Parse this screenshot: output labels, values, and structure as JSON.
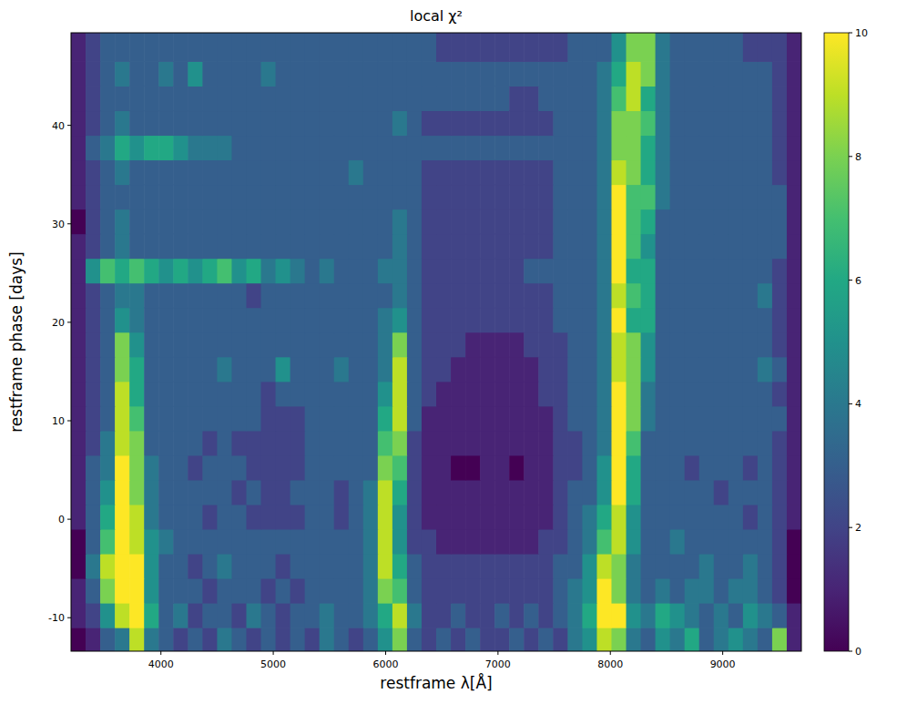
{
  "chart_data": {
    "type": "heatmap",
    "title": "local χ²",
    "x_label": "restframe λ[Å]",
    "y_label": "restframe phase [days]",
    "x_edges": [
      3200,
      3330,
      3460,
      3590,
      3720,
      3850,
      3980,
      4110,
      4240,
      4370,
      4500,
      4630,
      4760,
      4890,
      5020,
      5150,
      5280,
      5410,
      5540,
      5670,
      5800,
      5930,
      6060,
      6190,
      6320,
      6450,
      6580,
      6710,
      6840,
      6970,
      7100,
      7230,
      7360,
      7490,
      7620,
      7750,
      7880,
      8010,
      8140,
      8270,
      8400,
      8530,
      8660,
      8790,
      8920,
      9050,
      9180,
      9310,
      9440,
      9570,
      9700
    ],
    "y_edges": [
      -13.4,
      -11,
      -8.5,
      -6,
      -3.5,
      -1,
      1.5,
      4,
      6.5,
      9,
      11.5,
      14,
      16.5,
      19,
      21.5,
      24,
      26.5,
      29,
      31.5,
      34,
      36.5,
      39,
      41.5,
      44,
      46.5,
      49.4
    ],
    "cells": [
      [
        0,
        1,
        3,
        4,
        9,
        4,
        3,
        2,
        3,
        2,
        4,
        3,
        2,
        3,
        2,
        3,
        2,
        4,
        3,
        2,
        3,
        5,
        8,
        3,
        2,
        3,
        2,
        3,
        2,
        2,
        3,
        2,
        3,
        2,
        4,
        5,
        9,
        8,
        4,
        3,
        5,
        4,
        6,
        3,
        4,
        5,
        4,
        3,
        8,
        1
      ],
      [
        1,
        2,
        5,
        9,
        10,
        6,
        3,
        4,
        2,
        3,
        3,
        2,
        4,
        3,
        2,
        3,
        3,
        4,
        3,
        3,
        4,
        6,
        9,
        4,
        2,
        2,
        3,
        2,
        2,
        3,
        2,
        3,
        2,
        3,
        4,
        6,
        10,
        10,
        5,
        4,
        6,
        5,
        4,
        3,
        4,
        3,
        5,
        4,
        3,
        1
      ],
      [
        1,
        3,
        8,
        10,
        10,
        5,
        3,
        3,
        3,
        2,
        3,
        3,
        3,
        2,
        3,
        2,
        3,
        3,
        3,
        3,
        4,
        8,
        7,
        3,
        2,
        2,
        2,
        2,
        2,
        2,
        2,
        2,
        2,
        3,
        4,
        5,
        10,
        8,
        4,
        3,
        4,
        3,
        4,
        4,
        3,
        4,
        4,
        3,
        2,
        0
      ],
      [
        0,
        4,
        9,
        10,
        10,
        5,
        3,
        3,
        2,
        3,
        4,
        3,
        3,
        3,
        2,
        3,
        3,
        3,
        3,
        3,
        4,
        9,
        6,
        3,
        2,
        2,
        2,
        2,
        2,
        2,
        2,
        2,
        2,
        3,
        3,
        5,
        9,
        8,
        4,
        3,
        3,
        3,
        3,
        4,
        3,
        3,
        4,
        3,
        2,
        0
      ],
      [
        0,
        3,
        7,
        10,
        9,
        5,
        4,
        3,
        3,
        3,
        3,
        3,
        3,
        3,
        3,
        3,
        3,
        3,
        3,
        3,
        4,
        9,
        5,
        2,
        2,
        1,
        1,
        1,
        1,
        1,
        1,
        1,
        2,
        2,
        3,
        4,
        7,
        9,
        5,
        3,
        3,
        4,
        3,
        3,
        3,
        3,
        3,
        3,
        2,
        0
      ],
      [
        1,
        3,
        6,
        10,
        9,
        4,
        3,
        3,
        3,
        2,
        3,
        3,
        2,
        2,
        2,
        2,
        3,
        3,
        2,
        3,
        4,
        9,
        5,
        2,
        1,
        1,
        1,
        1,
        1,
        1,
        1,
        1,
        1,
        2,
        3,
        4,
        6,
        9,
        5,
        3,
        3,
        3,
        3,
        3,
        3,
        3,
        2,
        3,
        2,
        1
      ],
      [
        1,
        3,
        5,
        10,
        8,
        4,
        3,
        3,
        3,
        3,
        3,
        2,
        3,
        2,
        2,
        3,
        3,
        3,
        2,
        3,
        4,
        9,
        6,
        2,
        1,
        1,
        1,
        1,
        1,
        1,
        1,
        1,
        1,
        2,
        3,
        3,
        5,
        10,
        6,
        3,
        3,
        3,
        3,
        3,
        2,
        3,
        3,
        3,
        2,
        1
      ],
      [
        1,
        3,
        4,
        10,
        8,
        4,
        3,
        3,
        2,
        3,
        3,
        3,
        2,
        2,
        2,
        2,
        3,
        3,
        3,
        3,
        3,
        8,
        7,
        2,
        1,
        1,
        0,
        0,
        1,
        1,
        0,
        1,
        1,
        2,
        2,
        3,
        5,
        10,
        6,
        3,
        3,
        3,
        2,
        3,
        3,
        3,
        2,
        3,
        2,
        1
      ],
      [
        1,
        2,
        4,
        9,
        8,
        3,
        3,
        3,
        3,
        2,
        3,
        2,
        2,
        2,
        2,
        2,
        3,
        3,
        3,
        3,
        3,
        7,
        8,
        2,
        1,
        1,
        1,
        1,
        1,
        1,
        1,
        1,
        1,
        2,
        2,
        3,
        4,
        10,
        7,
        3,
        3,
        3,
        3,
        3,
        3,
        3,
        3,
        3,
        2,
        1
      ],
      [
        1,
        2,
        3,
        9,
        7,
        3,
        3,
        3,
        3,
        3,
        3,
        3,
        3,
        2,
        2,
        2,
        3,
        3,
        3,
        3,
        3,
        6,
        9,
        3,
        1,
        1,
        1,
        1,
        1,
        1,
        1,
        1,
        1,
        2,
        3,
        3,
        4,
        10,
        8,
        4,
        3,
        3,
        3,
        3,
        3,
        3,
        3,
        3,
        3,
        1
      ],
      [
        1,
        2,
        3,
        9,
        6,
        3,
        3,
        3,
        3,
        3,
        3,
        3,
        3,
        2,
        3,
        3,
        3,
        3,
        3,
        3,
        3,
        5,
        9,
        3,
        2,
        1,
        1,
        1,
        1,
        1,
        1,
        1,
        2,
        2,
        3,
        3,
        4,
        10,
        8,
        4,
        3,
        3,
        3,
        3,
        3,
        3,
        3,
        3,
        2,
        1
      ],
      [
        1,
        2,
        3,
        8,
        6,
        3,
        3,
        3,
        3,
        3,
        4,
        3,
        3,
        3,
        5,
        3,
        3,
        3,
        4,
        3,
        3,
        4,
        9,
        3,
        2,
        2,
        1,
        1,
        1,
        1,
        1,
        1,
        2,
        2,
        3,
        3,
        4,
        9,
        8,
        5,
        3,
        3,
        3,
        3,
        3,
        3,
        3,
        4,
        3,
        1
      ],
      [
        1,
        2,
        3,
        8,
        5,
        3,
        3,
        3,
        3,
        3,
        3,
        3,
        3,
        3,
        3,
        3,
        3,
        3,
        3,
        3,
        3,
        4,
        8,
        3,
        2,
        2,
        2,
        1,
        1,
        1,
        1,
        2,
        2,
        2,
        3,
        3,
        4,
        9,
        8,
        5,
        3,
        3,
        3,
        3,
        3,
        3,
        3,
        3,
        2,
        1
      ],
      [
        1,
        2,
        3,
        5,
        4,
        3,
        3,
        3,
        3,
        3,
        3,
        3,
        3,
        3,
        3,
        3,
        3,
        3,
        3,
        3,
        3,
        4,
        5,
        3,
        2,
        2,
        2,
        2,
        2,
        2,
        2,
        2,
        2,
        3,
        3,
        3,
        4,
        10,
        6,
        6,
        3,
        3,
        3,
        3,
        3,
        3,
        3,
        3,
        2,
        1
      ],
      [
        1,
        2,
        3,
        4,
        4,
        3,
        3,
        3,
        3,
        3,
        3,
        3,
        2,
        3,
        3,
        3,
        3,
        3,
        3,
        3,
        3,
        3,
        4,
        3,
        2,
        2,
        2,
        2,
        2,
        2,
        2,
        2,
        2,
        3,
        3,
        3,
        4,
        9,
        7,
        6,
        3,
        3,
        3,
        3,
        3,
        3,
        3,
        4,
        2,
        1
      ],
      [
        1,
        5,
        7,
        6,
        7,
        6,
        5,
        6,
        5,
        6,
        7,
        5,
        6,
        4,
        5,
        4,
        3,
        4,
        3,
        3,
        3,
        4,
        4,
        3,
        2,
        2,
        2,
        2,
        2,
        2,
        2,
        3,
        3,
        3,
        3,
        3,
        4,
        10,
        6,
        6,
        3,
        3,
        3,
        3,
        3,
        3,
        3,
        3,
        2,
        1
      ],
      [
        1,
        2,
        3,
        4,
        3,
        3,
        3,
        3,
        3,
        3,
        3,
        3,
        3,
        3,
        3,
        3,
        3,
        3,
        3,
        3,
        3,
        3,
        4,
        3,
        2,
        2,
        2,
        2,
        2,
        2,
        2,
        2,
        2,
        3,
        3,
        3,
        4,
        10,
        7,
        5,
        3,
        3,
        3,
        3,
        3,
        3,
        3,
        3,
        3,
        1
      ],
      [
        0,
        2,
        3,
        4,
        3,
        3,
        3,
        3,
        3,
        3,
        3,
        3,
        3,
        3,
        3,
        3,
        3,
        3,
        3,
        3,
        3,
        3,
        4,
        3,
        2,
        2,
        2,
        2,
        2,
        2,
        2,
        2,
        2,
        3,
        3,
        3,
        4,
        10,
        7,
        6,
        3,
        3,
        3,
        3,
        3,
        3,
        3,
        3,
        3,
        1
      ],
      [
        1,
        2,
        3,
        3,
        3,
        3,
        3,
        3,
        3,
        3,
        3,
        3,
        3,
        3,
        3,
        3,
        3,
        3,
        3,
        3,
        3,
        3,
        3,
        3,
        2,
        2,
        2,
        2,
        2,
        2,
        2,
        2,
        2,
        3,
        3,
        3,
        4,
        10,
        7,
        7,
        4,
        3,
        3,
        3,
        3,
        3,
        3,
        3,
        3,
        1
      ],
      [
        1,
        2,
        3,
        4,
        3,
        3,
        3,
        3,
        3,
        3,
        3,
        3,
        3,
        3,
        3,
        3,
        3,
        3,
        3,
        4,
        3,
        3,
        3,
        3,
        2,
        2,
        2,
        2,
        2,
        2,
        2,
        2,
        2,
        3,
        3,
        3,
        4,
        9,
        8,
        6,
        4,
        3,
        3,
        3,
        3,
        3,
        3,
        3,
        2,
        1
      ],
      [
        1,
        3,
        4,
        6,
        5,
        6,
        6,
        5,
        4,
        4,
        4,
        3,
        3,
        3,
        3,
        3,
        3,
        3,
        3,
        3,
        3,
        3,
        3,
        3,
        3,
        3,
        3,
        3,
        3,
        3,
        3,
        3,
        3,
        3,
        3,
        3,
        4,
        8,
        8,
        6,
        4,
        3,
        3,
        3,
        3,
        3,
        3,
        3,
        2,
        1
      ],
      [
        1,
        2,
        3,
        4,
        3,
        3,
        3,
        3,
        3,
        3,
        3,
        3,
        3,
        3,
        3,
        3,
        3,
        3,
        3,
        3,
        3,
        3,
        4,
        3,
        2,
        2,
        2,
        2,
        2,
        2,
        2,
        2,
        2,
        3,
        3,
        3,
        4,
        8,
        8,
        7,
        4,
        3,
        3,
        3,
        3,
        3,
        3,
        3,
        2,
        1
      ],
      [
        1,
        2,
        3,
        3,
        3,
        3,
        3,
        3,
        3,
        3,
        3,
        3,
        3,
        3,
        3,
        3,
        3,
        3,
        3,
        3,
        3,
        3,
        3,
        3,
        3,
        3,
        3,
        3,
        3,
        3,
        2,
        2,
        3,
        3,
        3,
        3,
        4,
        7,
        9,
        6,
        4,
        3,
        3,
        3,
        3,
        3,
        3,
        3,
        2,
        1
      ],
      [
        1,
        2,
        3,
        4,
        3,
        3,
        4,
        3,
        5,
        3,
        3,
        3,
        3,
        4,
        3,
        3,
        3,
        3,
        3,
        3,
        3,
        3,
        3,
        3,
        3,
        3,
        3,
        3,
        3,
        3,
        3,
        3,
        3,
        3,
        3,
        3,
        4,
        6,
        9,
        8,
        4,
        3,
        3,
        3,
        3,
        3,
        3,
        3,
        2,
        1
      ],
      [
        1,
        2,
        3,
        3,
        3,
        3,
        3,
        3,
        3,
        3,
        3,
        3,
        3,
        3,
        3,
        3,
        3,
        3,
        3,
        3,
        3,
        3,
        3,
        3,
        3,
        2,
        2,
        2,
        2,
        2,
        2,
        2,
        2,
        2,
        3,
        3,
        3,
        5,
        8,
        8,
        4,
        3,
        3,
        3,
        3,
        3,
        2,
        2,
        2,
        1
      ]
    ],
    "xlim": [
      3200,
      9700
    ],
    "ylim": [
      -13.4,
      49.4
    ],
    "xticks": [
      4000,
      5000,
      6000,
      7000,
      8000,
      9000
    ],
    "yticks": [
      -10,
      0,
      10,
      20,
      30,
      40
    ],
    "colorbar_lim": [
      0,
      10
    ],
    "colorbar_ticks": [
      0,
      2,
      4,
      6,
      8,
      10
    ]
  }
}
